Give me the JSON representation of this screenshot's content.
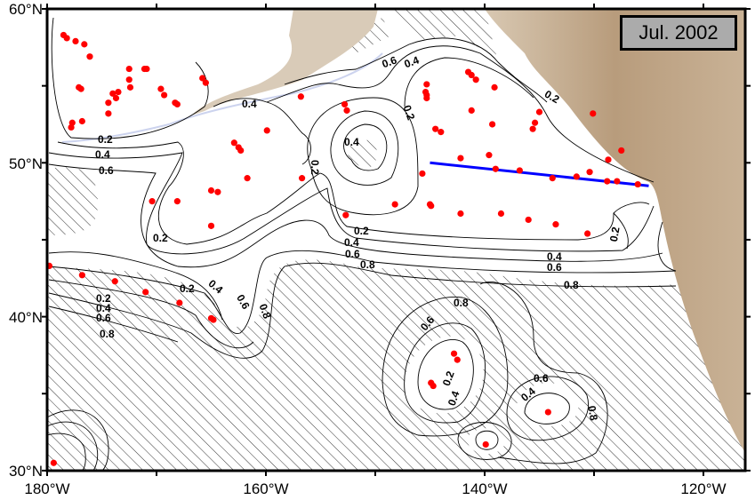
{
  "title": "Jul. 2002",
  "axes": {
    "lon_ticks": [
      "180°W",
      "160°W",
      "140°W",
      "120°W"
    ],
    "lat_ticks": [
      "60°N",
      "50°N",
      "40°N",
      "30°N"
    ],
    "lon_range": [
      -180,
      -116
    ],
    "lat_range": [
      30,
      60
    ]
  },
  "contour_labels": [
    "0.2",
    "0.4",
    "0.6",
    "0.8"
  ],
  "colors": {
    "stations": "#ff0000",
    "section_line": "#0000ff",
    "land": "#b89c7c",
    "contour": "#000000"
  },
  "section_line": {
    "start": [
      -145,
      50
    ],
    "end": [
      -125,
      48.5
    ]
  },
  "stations": [
    [
      -178.5,
      58.3
    ],
    [
      -178.2,
      58.1
    ],
    [
      -177.4,
      57.9
    ],
    [
      -176.6,
      57.7
    ],
    [
      -176.1,
      56.9
    ],
    [
      -177.1,
      54.9
    ],
    [
      -176.9,
      54.8
    ],
    [
      -177.7,
      52.6
    ],
    [
      -177.8,
      52.3
    ],
    [
      -176.8,
      52.7
    ],
    [
      -174.4,
      53.2
    ],
    [
      -174.4,
      53.9
    ],
    [
      -174,
      54.5
    ],
    [
      -173.5,
      54.6
    ],
    [
      -173.7,
      54.2
    ],
    [
      -172.5,
      55.4
    ],
    [
      -172.5,
      56.1
    ],
    [
      -172.4,
      54.9
    ],
    [
      -171.1,
      56.1
    ],
    [
      -170.9,
      56.1
    ],
    [
      -169.6,
      54.8
    ],
    [
      -169.3,
      54.4
    ],
    [
      -168.3,
      53.9
    ],
    [
      -168.1,
      53.8
    ],
    [
      -165.5,
      55.2
    ],
    [
      -165.8,
      55.5
    ],
    [
      -162.9,
      51.3
    ],
    [
      -162.5,
      51
    ],
    [
      -162.3,
      50.8
    ],
    [
      -159.9,
      52.1
    ],
    [
      -156.8,
      54.3
    ],
    [
      -156.7,
      49
    ],
    [
      -152.8,
      53.8
    ],
    [
      -152.6,
      53.4
    ],
    [
      -165.0,
      48.2
    ],
    [
      -164.4,
      48.1
    ],
    [
      -161.7,
      49.0
    ],
    [
      -168.1,
      47.5
    ],
    [
      -170.4,
      47.5
    ],
    [
      -165,
      45.9
    ],
    [
      -152.7,
      46.6
    ],
    [
      -145.3,
      55.1
    ],
    [
      -145.4,
      54.6
    ],
    [
      -145.3,
      54.4
    ],
    [
      -145.3,
      54.2
    ],
    [
      -141.5,
      55.9
    ],
    [
      -141.2,
      55.7
    ],
    [
      -140.8,
      55.4
    ],
    [
      -144.5,
      52.2
    ],
    [
      -144,
      52.0
    ],
    [
      -141.2,
      53.4
    ],
    [
      -139.3,
      52.5
    ],
    [
      -139.1,
      54.9
    ],
    [
      -135.4,
      52.6
    ],
    [
      -135,
      53.3
    ],
    [
      -135.6,
      52.2
    ],
    [
      -142.2,
      50.3
    ],
    [
      -139.6,
      50.5
    ],
    [
      -145.7,
      49.3
    ],
    [
      -139,
      49.6
    ],
    [
      -136.8,
      49.5
    ],
    [
      -133.8,
      49.0
    ],
    [
      -131.6,
      49.1
    ],
    [
      -130.4,
      49.4
    ],
    [
      -128.8,
      48.8
    ],
    [
      -127.9,
      48.8
    ],
    [
      -126.0,
      48.6
    ],
    [
      -128.7,
      50.2
    ],
    [
      -130.1,
      53.2
    ],
    [
      -127.5,
      50.8
    ],
    [
      -145.0,
      47.3
    ],
    [
      -144.9,
      47.2
    ],
    [
      -148.2,
      47.3
    ],
    [
      -142.2,
      46.7
    ],
    [
      -138.5,
      46.7
    ],
    [
      -136.0,
      46.3
    ],
    [
      -133.5,
      46.0
    ],
    [
      -130.6,
      45.4
    ],
    [
      -176.8,
      42.7
    ],
    [
      -173.8,
      42.3
    ],
    [
      -171,
      41.6
    ],
    [
      -167.9,
      40.9
    ],
    [
      -165,
      39.9
    ],
    [
      -164.8,
      39.8
    ],
    [
      -179.8,
      43.3
    ],
    [
      -142.8,
      37.6
    ],
    [
      -142.5,
      37.2
    ],
    [
      -144.9,
      35.7
    ],
    [
      -144.7,
      35.5
    ],
    [
      -134.2,
      33.8
    ],
    [
      -139.9,
      31.7
    ],
    [
      -179.4,
      30.5
    ]
  ]
}
